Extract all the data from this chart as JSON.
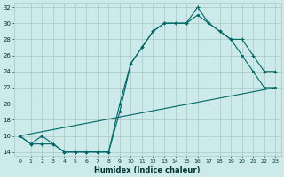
{
  "title": "",
  "xlabel": "Humidex (Indice chaleur)",
  "background_color": "#cdeaea",
  "grid_color": "#b0cccc",
  "line_color": "#006666",
  "xlim": [
    -0.5,
    23.5
  ],
  "ylim": [
    13.5,
    32.5
  ],
  "yticks": [
    14,
    16,
    18,
    20,
    22,
    24,
    26,
    28,
    30,
    32
  ],
  "xticks": [
    0,
    1,
    2,
    3,
    4,
    5,
    6,
    7,
    8,
    9,
    10,
    11,
    12,
    13,
    14,
    15,
    16,
    17,
    18,
    19,
    20,
    21,
    22,
    23
  ],
  "line1_x": [
    0,
    1,
    2,
    3,
    4,
    5,
    6,
    7,
    8,
    9,
    10,
    11,
    12,
    13,
    14,
    15,
    16,
    17,
    18,
    19,
    20,
    21,
    22,
    23
  ],
  "line1_y": [
    16,
    15,
    16,
    15,
    14,
    14,
    14,
    14,
    14,
    19,
    25,
    27,
    29,
    30,
    30,
    30,
    31,
    30,
    29,
    28,
    26,
    24,
    22,
    22
  ],
  "line2_x": [
    0,
    1,
    2,
    3,
    4,
    5,
    6,
    7,
    8,
    9,
    10,
    11,
    12,
    13,
    14,
    15,
    16,
    17,
    18,
    19,
    20,
    21,
    22,
    23
  ],
  "line2_y": [
    16,
    15,
    15,
    15,
    14,
    14,
    14,
    14,
    14,
    20,
    25,
    27,
    29,
    30,
    30,
    30,
    32,
    30,
    29,
    28,
    28,
    26,
    24,
    24
  ],
  "line3_x": [
    0,
    23
  ],
  "line3_y": [
    16,
    22
  ]
}
